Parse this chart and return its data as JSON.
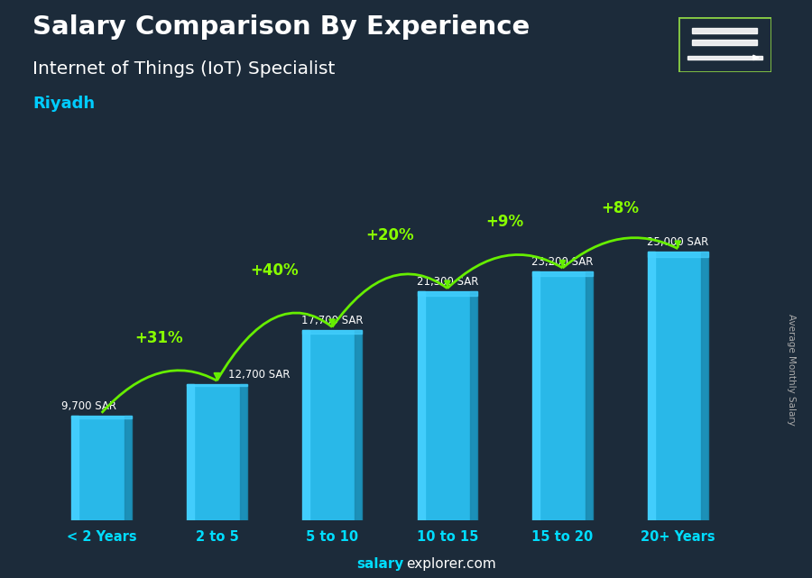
{
  "title": "Salary Comparison By Experience",
  "subtitle": "Internet of Things (IoT) Specialist",
  "city": "Riyadh",
  "categories": [
    "< 2 Years",
    "2 to 5",
    "5 to 10",
    "10 to 15",
    "15 to 20",
    "20+ Years"
  ],
  "values": [
    9700,
    12700,
    17700,
    21300,
    23200,
    25000
  ],
  "salary_labels": [
    "9,700 SAR",
    "12,700 SAR",
    "17,700 SAR",
    "21,300 SAR",
    "23,200 SAR",
    "25,000 SAR"
  ],
  "pct_labels": [
    "+31%",
    "+40%",
    "+20%",
    "+9%",
    "+8%"
  ],
  "bar_color": "#29b8e8",
  "bar_color_left": "#45d0ff",
  "bar_color_right": "#1a8ab0",
  "bg_color": "#1c2b3a",
  "title_color": "#ffffff",
  "subtitle_color": "#ffffff",
  "city_color": "#00ccff",
  "salary_label_color": "#ffffff",
  "pct_color": "#88ff00",
  "arrow_color": "#66ee00",
  "xtick_color": "#00ddff",
  "footer_salary_color": "#00ddff",
  "footer_rest_color": "#ffffff",
  "ylabel": "Average Monthly Salary",
  "ylim": [
    0,
    28000
  ],
  "bar_width": 0.52
}
